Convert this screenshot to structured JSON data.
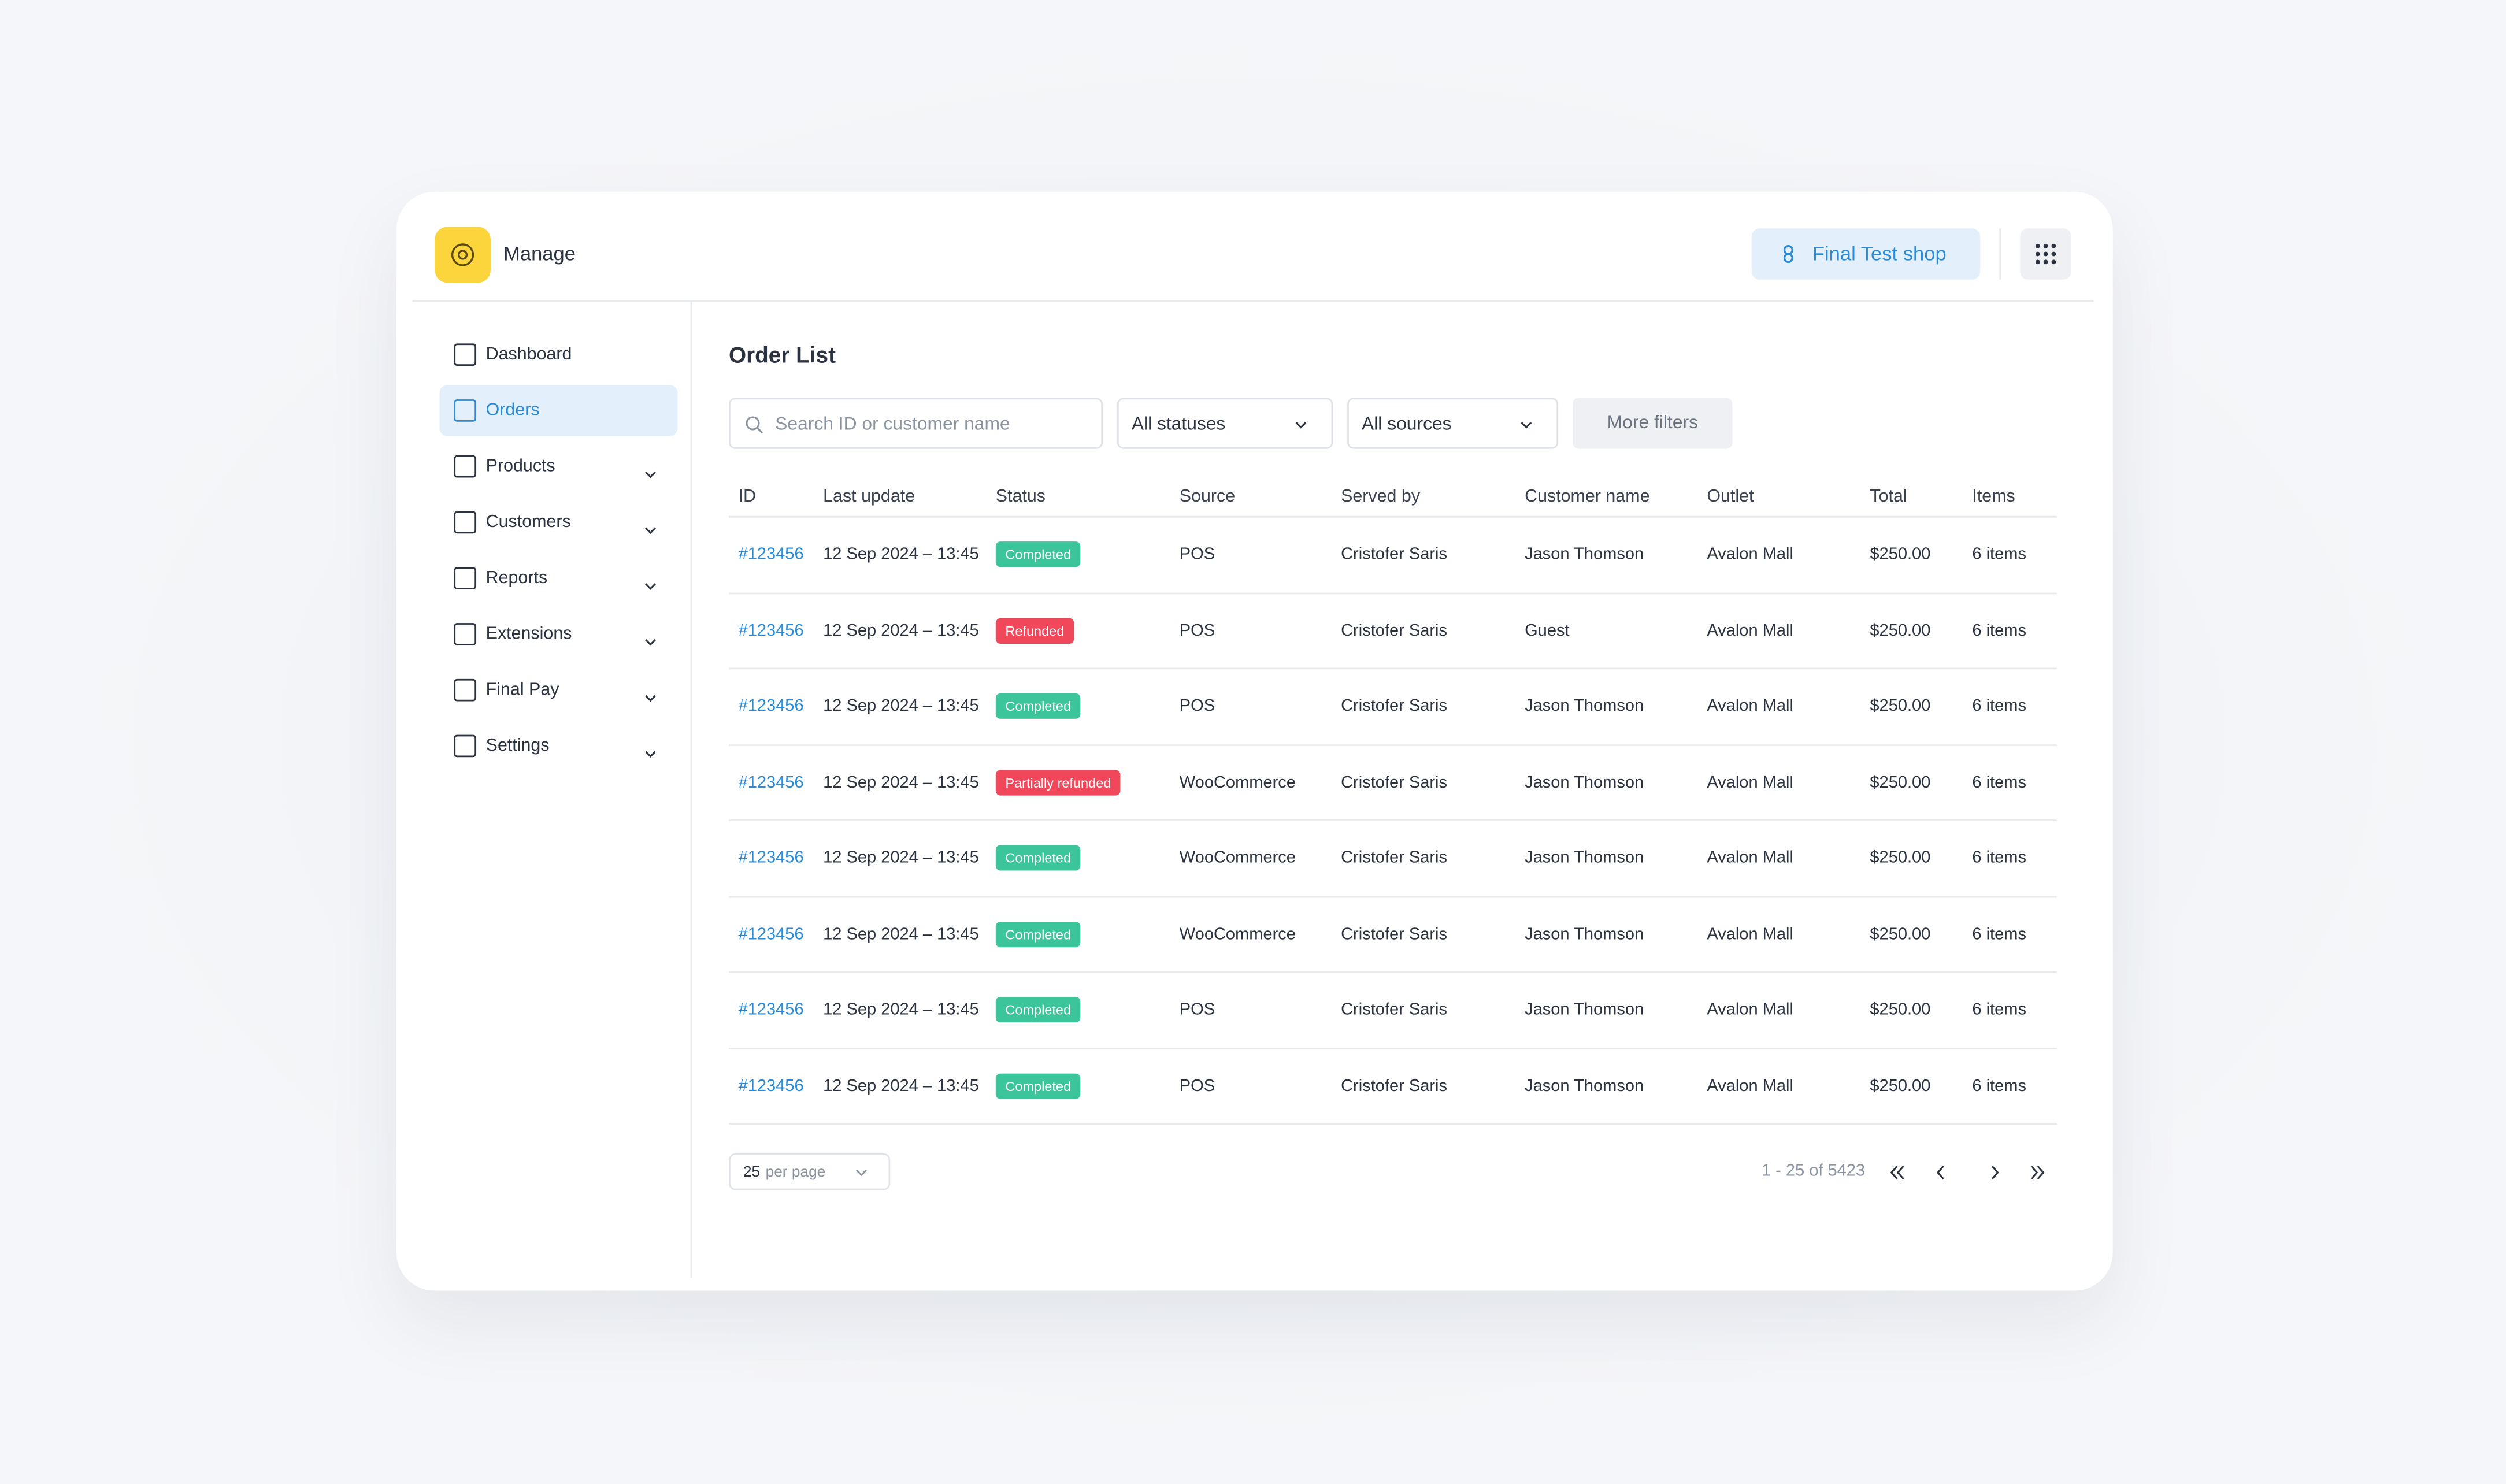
{
  "header": {
    "app_title": "Manage",
    "shop_button": "Final Test shop"
  },
  "nav": [
    {
      "label": "Dashboard",
      "expandable": false
    },
    {
      "label": "Orders",
      "expandable": false,
      "active": true
    },
    {
      "label": "Products",
      "expandable": true
    },
    {
      "label": "Customers",
      "expandable": true
    },
    {
      "label": "Reports",
      "expandable": true
    },
    {
      "label": "Extensions",
      "expandable": true
    },
    {
      "label": "Final Pay",
      "expandable": true
    },
    {
      "label": "Settings",
      "expandable": true
    }
  ],
  "page": {
    "title": "Order List",
    "search_placeholder": "Search ID or customer name",
    "status_filter": "All statuses",
    "source_filter": "All sources",
    "more_filters": "More filters"
  },
  "table": {
    "columns": [
      "ID",
      "Last update",
      "Status",
      "Source",
      "Served by",
      "Customer name",
      "Outlet",
      "Total",
      "Items"
    ],
    "rows": [
      {
        "id": "#123456",
        "updated": "12 Sep 2024 – 13:45",
        "status": {
          "label": "Completed",
          "color": "#3cc59a"
        },
        "source": "POS",
        "served_by": "Cristofer Saris",
        "customer": "Jason Thomson",
        "outlet": "Avalon Mall",
        "total": "$250.00",
        "items": "6 items"
      },
      {
        "id": "#123456",
        "updated": "12 Sep 2024 – 13:45",
        "status": {
          "label": "Refunded",
          "color": "#f0475a"
        },
        "source": "POS",
        "served_by": "Cristofer Saris",
        "customer": "Guest",
        "outlet": "Avalon Mall",
        "total": "$250.00",
        "items": "6 items"
      },
      {
        "id": "#123456",
        "updated": "12 Sep 2024 – 13:45",
        "status": {
          "label": "Completed",
          "color": "#3cc59a"
        },
        "source": "POS",
        "served_by": "Cristofer Saris",
        "customer": "Jason Thomson",
        "outlet": "Avalon Mall",
        "total": "$250.00",
        "items": "6 items"
      },
      {
        "id": "#123456",
        "updated": "12 Sep 2024 – 13:45",
        "status": {
          "label": "Partially refunded",
          "color": "#f0475a"
        },
        "source": "WooCommerce",
        "served_by": "Cristofer Saris",
        "customer": "Jason Thomson",
        "outlet": "Avalon Mall",
        "total": "$250.00",
        "items": "6 items"
      },
      {
        "id": "#123456",
        "updated": "12 Sep 2024 – 13:45",
        "status": {
          "label": "Completed",
          "color": "#3cc59a"
        },
        "source": "WooCommerce",
        "served_by": "Cristofer Saris",
        "customer": "Jason Thomson",
        "outlet": "Avalon Mall",
        "total": "$250.00",
        "items": "6 items"
      },
      {
        "id": "#123456",
        "updated": "12 Sep 2024 – 13:45",
        "status": {
          "label": "Completed",
          "color": "#3cc59a"
        },
        "source": "WooCommerce",
        "served_by": "Cristofer Saris",
        "customer": "Jason Thomson",
        "outlet": "Avalon Mall",
        "total": "$250.00",
        "items": "6 items"
      },
      {
        "id": "#123456",
        "updated": "12 Sep 2024 – 13:45",
        "status": {
          "label": "Completed",
          "color": "#3cc59a"
        },
        "source": "POS",
        "served_by": "Cristofer Saris",
        "customer": "Jason Thomson",
        "outlet": "Avalon Mall",
        "total": "$250.00",
        "items": "6 items"
      },
      {
        "id": "#123456",
        "updated": "12 Sep 2024 – 13:45",
        "status": {
          "label": "Completed",
          "color": "#3cc59a"
        },
        "source": "POS",
        "served_by": "Cristofer Saris",
        "customer": "Jason Thomson",
        "outlet": "Avalon Mall",
        "total": "$250.00",
        "items": "6 items"
      }
    ]
  },
  "pagination": {
    "per_page": "25",
    "per_page_label": "per page",
    "range": "1 - 25 of 5423"
  }
}
